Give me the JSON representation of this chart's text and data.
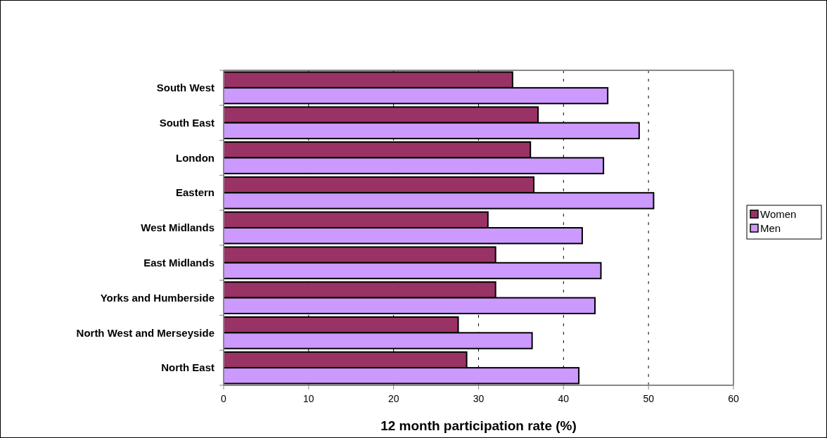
{
  "chart_data": {
    "type": "bar",
    "orientation": "horizontal",
    "xlabel": "12 month participation rate (%)",
    "categories": [
      "South West",
      "South East",
      "London",
      "Eastern",
      "West Midlands",
      "East Midlands",
      "Yorks and Humberside",
      "North West and Merseyside",
      "North East"
    ],
    "series": [
      {
        "name": "Women",
        "color": "#993366",
        "values": [
          34.0,
          37.0,
          36.1,
          36.5,
          31.1,
          32.0,
          32.0,
          27.6,
          28.6
        ]
      },
      {
        "name": "Men",
        "color": "#cc99ff",
        "values": [
          45.2,
          48.9,
          44.7,
          50.6,
          42.2,
          44.4,
          43.7,
          36.3,
          41.8
        ]
      }
    ],
    "xlim": [
      0,
      60
    ],
    "xticks": [
      0,
      10,
      20,
      30,
      40,
      50,
      60
    ],
    "grid": "x",
    "legend": "right"
  }
}
